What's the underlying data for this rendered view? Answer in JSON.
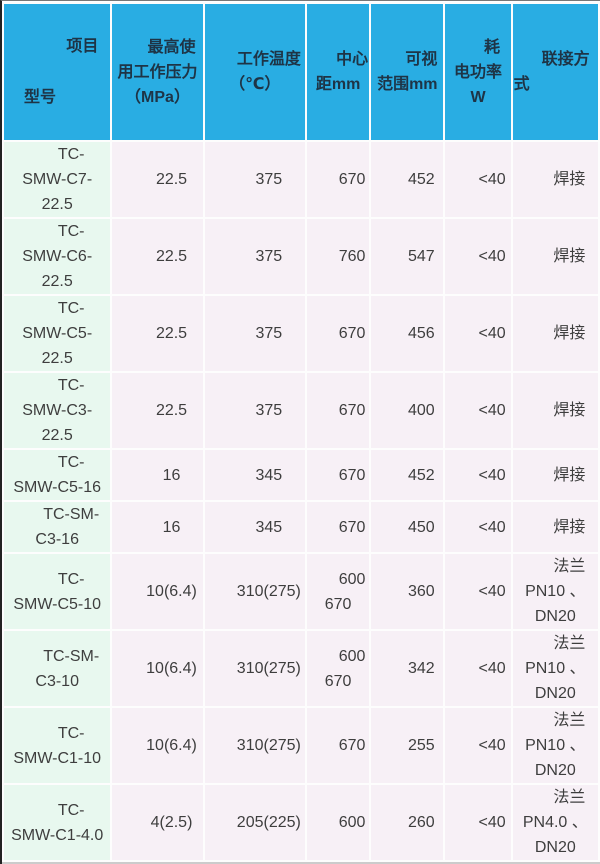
{
  "colors": {
    "header_bg": "#29ade3",
    "header_text": "#1e3446",
    "row_bg": "#f7f0f6",
    "model_col_bg": "#e8f8ef",
    "row_text": "#3e3e3e",
    "bottom_line": "#cccccc"
  },
  "table": {
    "header": {
      "item_label": "项目",
      "model_label": "型号",
      "columns": [
        "最高使\n用工作压力\n（MPa）",
        "工作温度\n（℃）",
        "中心\n距mm",
        "可视\n范围mm",
        "耗\n电功率\nW",
        "联接方\n式"
      ]
    },
    "rows": [
      {
        "cells": [
          "TC-\nSMW-C7-\n22.5",
          "22.5",
          "375",
          "670",
          "452",
          "<40",
          "焊接"
        ]
      },
      {
        "cells": [
          "TC-\nSMW-C6-\n22.5",
          "22.5",
          "375",
          "760",
          "547",
          "<40",
          "焊接"
        ]
      },
      {
        "cells": [
          "TC-\nSMW-C5-\n22.5",
          "22.5",
          "375",
          "670",
          "456",
          "<40",
          "焊接"
        ]
      },
      {
        "cells": [
          "TC-\nSMW-C3-\n22.5",
          "22.5",
          "375",
          "670",
          "400",
          "<40",
          "焊接"
        ]
      },
      {
        "cells": [
          "TC-\nSMW-C5-16",
          "16",
          "345",
          "670",
          "452",
          "<40",
          "焊接"
        ]
      },
      {
        "cells": [
          "TC-SM-\nC3-16",
          "16",
          "345",
          "670",
          "450",
          "<40",
          "焊接"
        ]
      },
      {
        "cells": [
          "TC-\nSMW-C5-10",
          "10(6.4)",
          "310(275)",
          "600\n670",
          "360",
          "<40",
          "法兰\nPN10 、\nDN20"
        ]
      },
      {
        "cells": [
          "TC-SM-\nC3-10",
          "10(6.4)",
          "310(275)",
          "600\n670",
          "342",
          "<40",
          "法兰\nPN10 、\nDN20"
        ]
      },
      {
        "cells": [
          "TC-\nSMW-C1-10",
          "10(6.4)",
          "310(275)",
          "670",
          "255",
          "<40",
          "法兰\nPN10 、\nDN20"
        ]
      },
      {
        "cells": [
          "TC-\nSMW-C1-4.0",
          "4(2.5)",
          "205(225)",
          "600",
          "260",
          "<40",
          "法兰\nPN4.0 、\nDN20"
        ]
      }
    ]
  }
}
